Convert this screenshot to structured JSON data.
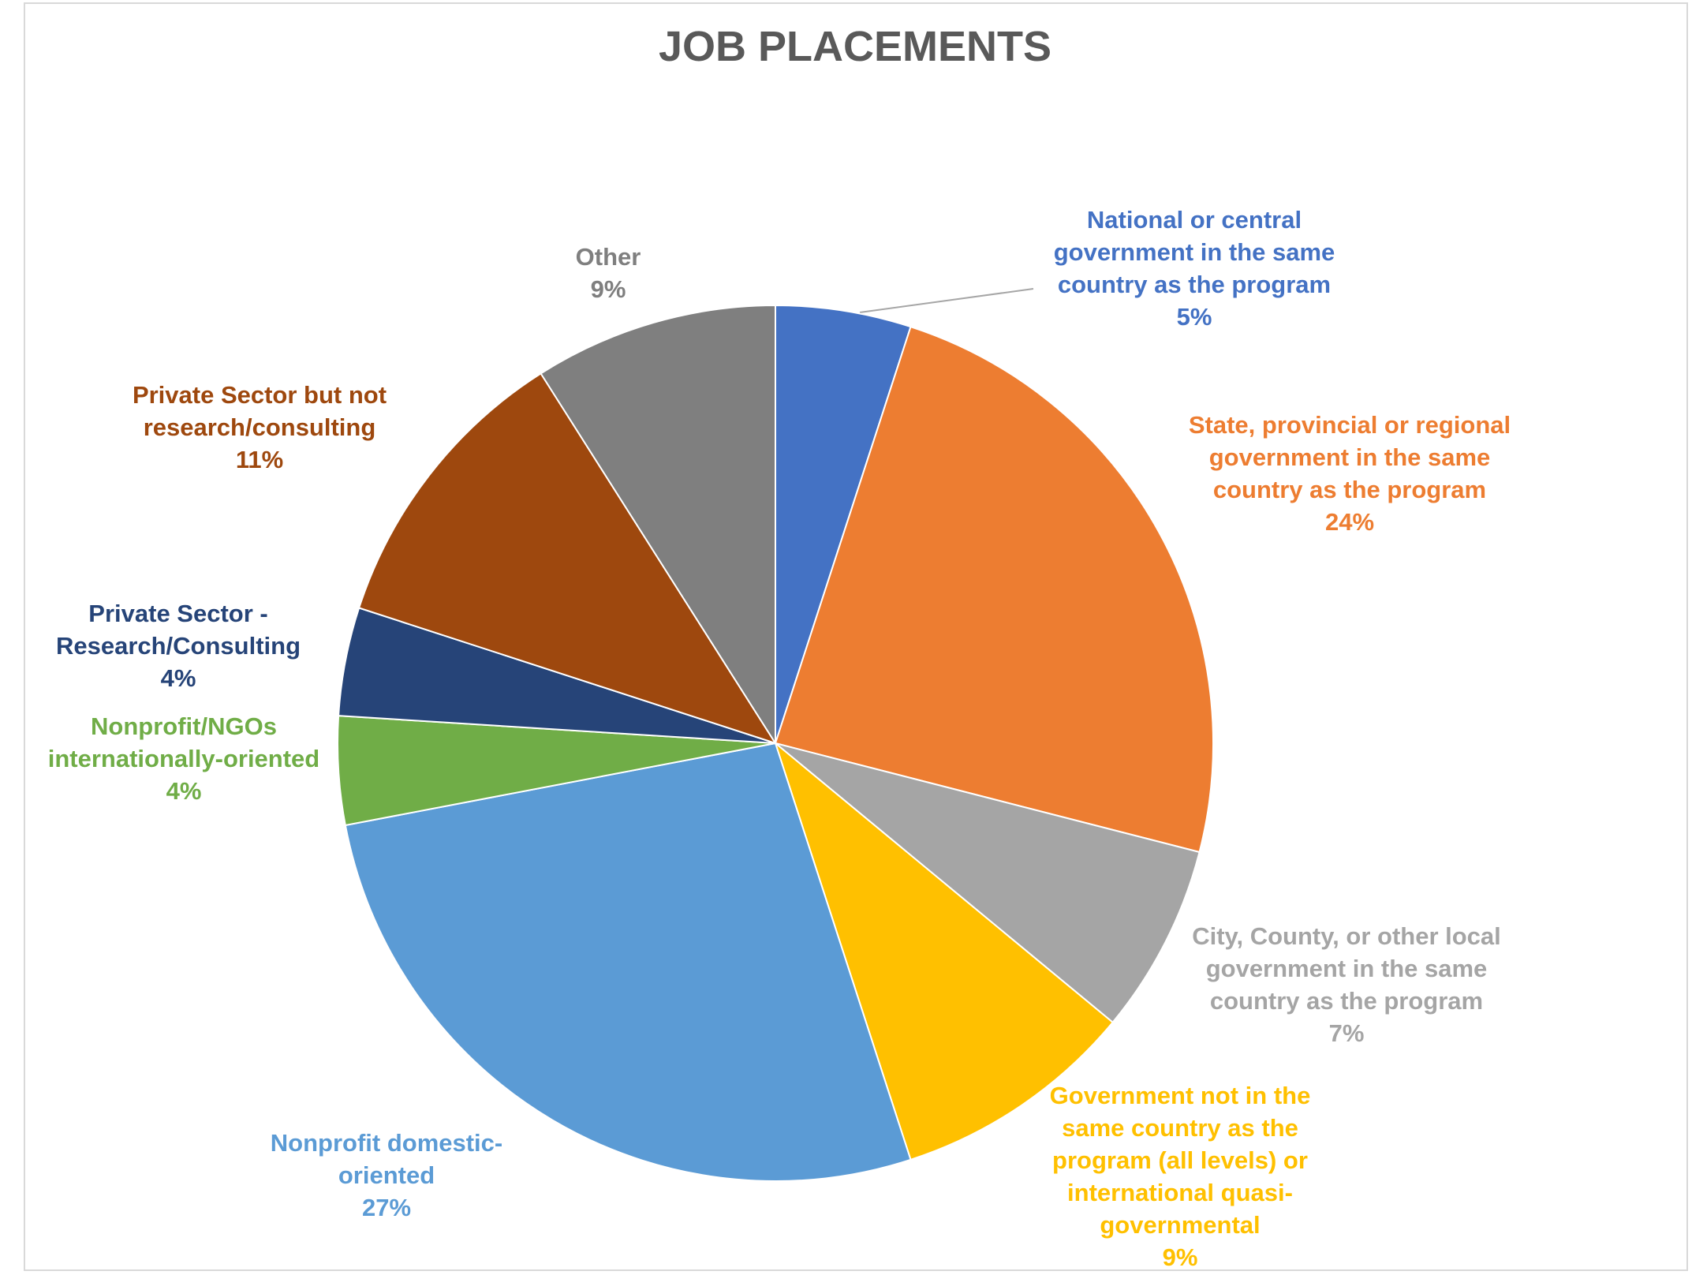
{
  "chart_data": {
    "type": "pie",
    "title": "JOB PLACEMENTS",
    "categories": [
      "National or central government in the same country as the program",
      "State, provincial or regional government in the same country as the program",
      "City, County, or other local government in the same country as the program",
      "Government not in the same country as the program (all levels) or international quasi-governmental",
      "Nonprofit domestic-oriented",
      "Nonprofit/NGOs internationally-oriented",
      "Private Sector - Research/Consulting",
      "Private Sector but not research/consulting",
      "Other"
    ],
    "values": [
      5,
      24,
      7,
      9,
      27,
      4,
      4,
      11,
      9
    ],
    "value_labels": [
      "5%",
      "24%",
      "7%",
      "9%",
      "27%",
      "4%",
      "4%",
      "11%",
      "9%"
    ],
    "colors": [
      "#4472c4",
      "#ed7d31",
      "#a5a5a5",
      "#ffc000",
      "#5b9bd5",
      "#70ad47",
      "#264478",
      "#9e480e",
      "#7f7f7f"
    ]
  }
}
